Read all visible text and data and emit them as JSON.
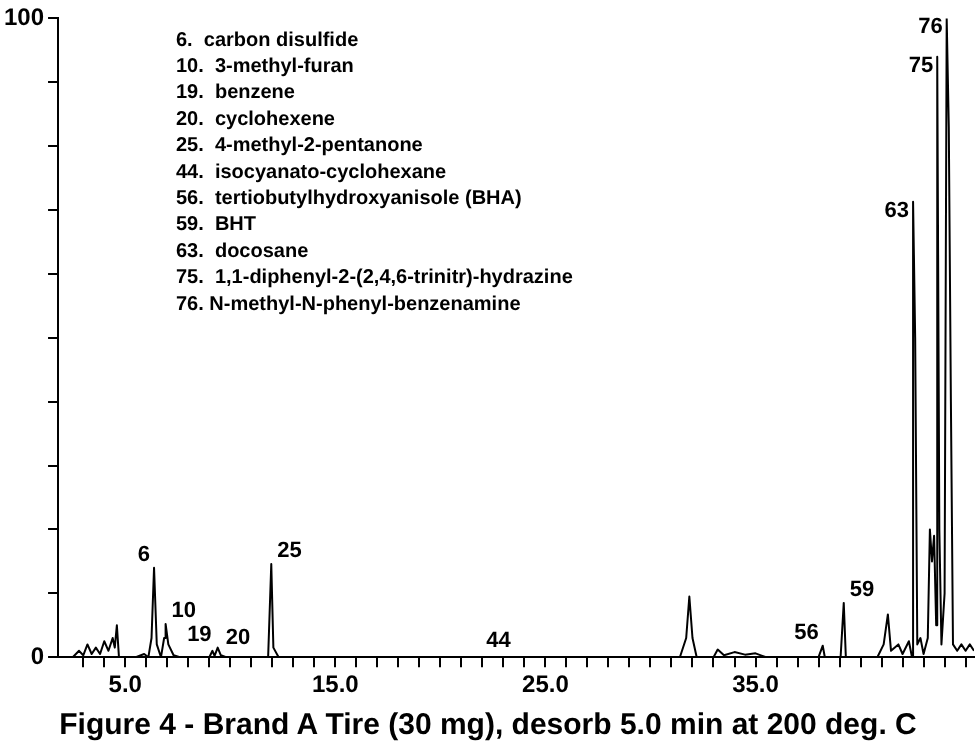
{
  "chart_data": {
    "type": "line",
    "xlabel": "Figure 4 - Brand A Tire (30 mg), desorb 5.0 min at 200 deg. C",
    "xlim": [
      1.8,
      45.4
    ],
    "ylim": [
      0,
      100
    ],
    "xticks": [
      {
        "value": 3,
        "label": null
      },
      {
        "value": 4,
        "label": null
      },
      {
        "value": 5,
        "label": "5.0"
      },
      {
        "value": 6,
        "label": null
      },
      {
        "value": 7,
        "label": null
      },
      {
        "value": 8,
        "label": null
      },
      {
        "value": 9,
        "label": null
      },
      {
        "value": 10,
        "label": null
      },
      {
        "value": 11,
        "label": null
      },
      {
        "value": 12,
        "label": null
      },
      {
        "value": 13,
        "label": null
      },
      {
        "value": 14,
        "label": null
      },
      {
        "value": 15,
        "label": "15.0"
      },
      {
        "value": 16,
        "label": null
      },
      {
        "value": 17,
        "label": null
      },
      {
        "value": 18,
        "label": null
      },
      {
        "value": 19,
        "label": null
      },
      {
        "value": 20,
        "label": null
      },
      {
        "value": 21,
        "label": null
      },
      {
        "value": 22,
        "label": null
      },
      {
        "value": 23,
        "label": null
      },
      {
        "value": 24,
        "label": null
      },
      {
        "value": 25,
        "label": "25.0"
      },
      {
        "value": 26,
        "label": null
      },
      {
        "value": 27,
        "label": null
      },
      {
        "value": 28,
        "label": null
      },
      {
        "value": 29,
        "label": null
      },
      {
        "value": 30,
        "label": null
      },
      {
        "value": 31,
        "label": null
      },
      {
        "value": 32,
        "label": null
      },
      {
        "value": 33,
        "label": null
      },
      {
        "value": 34,
        "label": null
      },
      {
        "value": 35,
        "label": "35.0"
      },
      {
        "value": 36,
        "label": null
      },
      {
        "value": 37,
        "label": null
      },
      {
        "value": 38,
        "label": null
      },
      {
        "value": 39,
        "label": null
      },
      {
        "value": 40,
        "label": null
      },
      {
        "value": 41,
        "label": null
      },
      {
        "value": 42,
        "label": null
      },
      {
        "value": 43,
        "label": null
      },
      {
        "value": 44,
        "label": null
      },
      {
        "value": 45,
        "label": null
      }
    ],
    "yticks": [
      0,
      {
        "value": 10,
        "label": null
      },
      {
        "value": 20,
        "label": null
      },
      {
        "value": 30,
        "label": null
      },
      {
        "value": 40,
        "label": null
      },
      {
        "value": 50,
        "label": null
      },
      {
        "value": 60,
        "label": null
      },
      {
        "value": 70,
        "label": null
      },
      {
        "value": 80,
        "label": null
      },
      {
        "value": 90,
        "label": null
      },
      100
    ],
    "grid": false,
    "legend": false,
    "marker": "none",
    "line_style": "solid",
    "series": [
      {
        "color": "#000000",
        "x": [
          1.8,
          2.5,
          2.8,
          3.0,
          3.2,
          3.4,
          3.6,
          3.8,
          4.0,
          4.2,
          4.4,
          4.5,
          4.6,
          4.7,
          5.5,
          5.9,
          6.1,
          6.25,
          6.37,
          6.5,
          6.7,
          6.85,
          6.92,
          7.05,
          7.3,
          7.6,
          9.0,
          9.15,
          9.25,
          9.4,
          9.55,
          9.8,
          11.8,
          11.95,
          12.05,
          12.3,
          31.4,
          31.7,
          31.85,
          32.0,
          32.2,
          33.0,
          33.2,
          33.5,
          34.0,
          34.5,
          35.0,
          35.5,
          38.0,
          38.2,
          38.3,
          39.05,
          39.2,
          39.3,
          40.8,
          41.1,
          41.3,
          41.45,
          41.8,
          42.0,
          42.3,
          42.45,
          42.5,
          42.6,
          42.7,
          42.85,
          43.0,
          43.2,
          43.3,
          43.4,
          43.5,
          43.6,
          43.65,
          43.75,
          43.85,
          44.0,
          44.1,
          44.2,
          44.3,
          44.4,
          44.6,
          44.8,
          45.0,
          45.2,
          45.4
        ],
        "values": [
          0,
          0,
          1,
          0.3,
          2,
          0.5,
          1.5,
          0.5,
          2.5,
          1,
          3,
          1.5,
          5,
          0,
          0,
          0.5,
          0,
          3,
          14,
          2,
          0,
          3,
          5.2,
          2,
          0.3,
          0,
          0,
          1,
          0.2,
          1.5,
          0.3,
          0,
          0,
          14.6,
          1.5,
          0,
          0,
          3,
          9.5,
          3,
          0,
          0,
          1.2,
          0.3,
          0.8,
          0.4,
          0.6,
          0,
          0,
          1.8,
          0,
          0,
          8.5,
          0,
          0,
          2,
          6.7,
          1,
          2,
          0.5,
          2.5,
          0,
          71.3,
          50,
          2,
          3,
          0.5,
          3,
          20,
          15,
          19,
          5,
          94,
          20,
          2,
          10,
          100,
          83,
          40,
          2,
          1,
          2,
          1,
          2,
          1
        ]
      }
    ],
    "annotations": [
      "6.  carbon disulfide",
      "10.  3-methyl-furan",
      "19.  benzene",
      "20.  cyclohexene",
      "25.  4-methyl-2-pentanone",
      "44.  isocyanato-cyclohexane",
      "56.  tertiobutylhydroxyanisole (BHA)",
      "59.  BHT",
      "63.  docosane",
      "75.  1,1-diphenyl-2-(2,4,6-trinitr)-hydrazine",
      "76. N-methyl-N-phenyl-benzenamine",
      {
        "text": "6",
        "x": 6.37,
        "y": 14
      },
      {
        "text": "10",
        "x": 6.92,
        "y": 5.2
      },
      {
        "text": "19",
        "x": 9.3,
        "y": 1.5
      },
      {
        "text": "20",
        "x": 9.5,
        "y": 1
      },
      {
        "text": "25",
        "x": 11.95,
        "y": 14.6
      },
      {
        "text": "44",
        "x": 21.9,
        "y": 0.5
      },
      {
        "text": "56",
        "x": 38.2,
        "y": 1.8
      },
      {
        "text": "59",
        "x": 39.2,
        "y": 8.5
      },
      {
        "text": "63",
        "x": 42.5,
        "y": 71.3
      },
      {
        "text": "75",
        "x": 43.65,
        "y": 94
      },
      {
        "text": "76",
        "x": 44.1,
        "y": 100
      }
    ]
  }
}
